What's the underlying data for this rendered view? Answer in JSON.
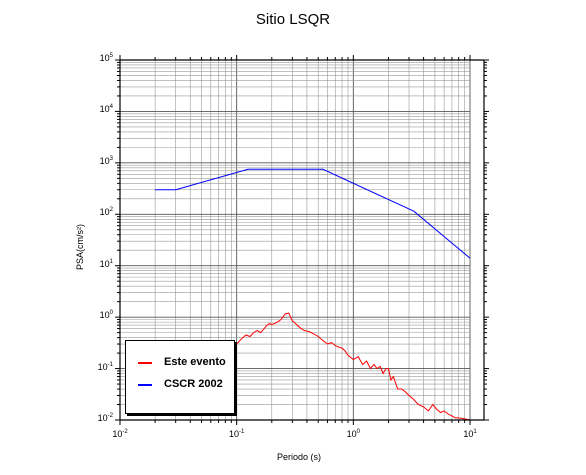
{
  "chart_data": {
    "type": "line",
    "title": "Sitio LSQR",
    "xlabel": "Periodo (s)",
    "ylabel": "PSA(cm/s²)",
    "xscale": "log",
    "yscale": "log",
    "xlim": [
      0.01,
      10
    ],
    "ylim": [
      0.01,
      100000
    ],
    "grid": true,
    "legend_position": "bottom-left",
    "x_ticks": [
      {
        "base": "10",
        "exp": "-2"
      },
      {
        "base": "10",
        "exp": "-1"
      },
      {
        "base": "10",
        "exp": "0"
      },
      {
        "base": "10",
        "exp": "1"
      }
    ],
    "y_ticks": [
      {
        "base": "10",
        "exp": "5"
      },
      {
        "base": "10",
        "exp": "4"
      },
      {
        "base": "10",
        "exp": "3"
      },
      {
        "base": "10",
        "exp": "2"
      },
      {
        "base": "10",
        "exp": "1"
      },
      {
        "base": "10",
        "exp": "0"
      },
      {
        "base": "10",
        "exp": "-1"
      },
      {
        "base": "10",
        "exp": "-2"
      }
    ],
    "series": [
      {
        "name": "Este evento",
        "color": "#ff0000",
        "x": [
          0.1,
          0.11,
          0.12,
          0.13,
          0.14,
          0.15,
          0.16,
          0.17,
          0.18,
          0.19,
          0.2,
          0.22,
          0.24,
          0.26,
          0.28,
          0.3,
          0.32,
          0.35,
          0.38,
          0.42,
          0.45,
          0.5,
          0.55,
          0.6,
          0.65,
          0.7,
          0.75,
          0.8,
          0.85,
          0.9,
          1.0,
          1.1,
          1.2,
          1.3,
          1.4,
          1.5,
          1.6,
          1.7,
          1.8,
          1.9,
          2.0,
          2.1,
          2.2,
          2.4,
          2.6,
          2.8,
          3.0,
          3.3,
          3.6,
          4.0,
          4.4,
          4.8,
          5.2,
          5.6,
          6.0,
          6.5,
          7.0,
          7.5,
          8.0,
          9.0,
          10.0
        ],
        "y": [
          0.3,
          0.38,
          0.45,
          0.42,
          0.5,
          0.55,
          0.5,
          0.58,
          0.68,
          0.75,
          0.72,
          0.78,
          0.9,
          1.15,
          1.2,
          0.85,
          0.75,
          0.62,
          0.55,
          0.52,
          0.48,
          0.42,
          0.35,
          0.3,
          0.32,
          0.28,
          0.26,
          0.25,
          0.22,
          0.18,
          0.15,
          0.17,
          0.12,
          0.14,
          0.1,
          0.12,
          0.1,
          0.11,
          0.08,
          0.1,
          0.1,
          0.06,
          0.07,
          0.04,
          0.04,
          0.035,
          0.03,
          0.025,
          0.02,
          0.018,
          0.015,
          0.02,
          0.016,
          0.014,
          0.015,
          0.013,
          0.012,
          0.011,
          0.011,
          0.0105,
          0.01
        ]
      },
      {
        "name": "CSCR 2002",
        "color": "#0000ff",
        "x": [
          0.02,
          0.03,
          0.125,
          0.55,
          3.3,
          10
        ],
        "y": [
          300,
          300,
          750,
          750,
          115,
          14
        ]
      }
    ]
  }
}
